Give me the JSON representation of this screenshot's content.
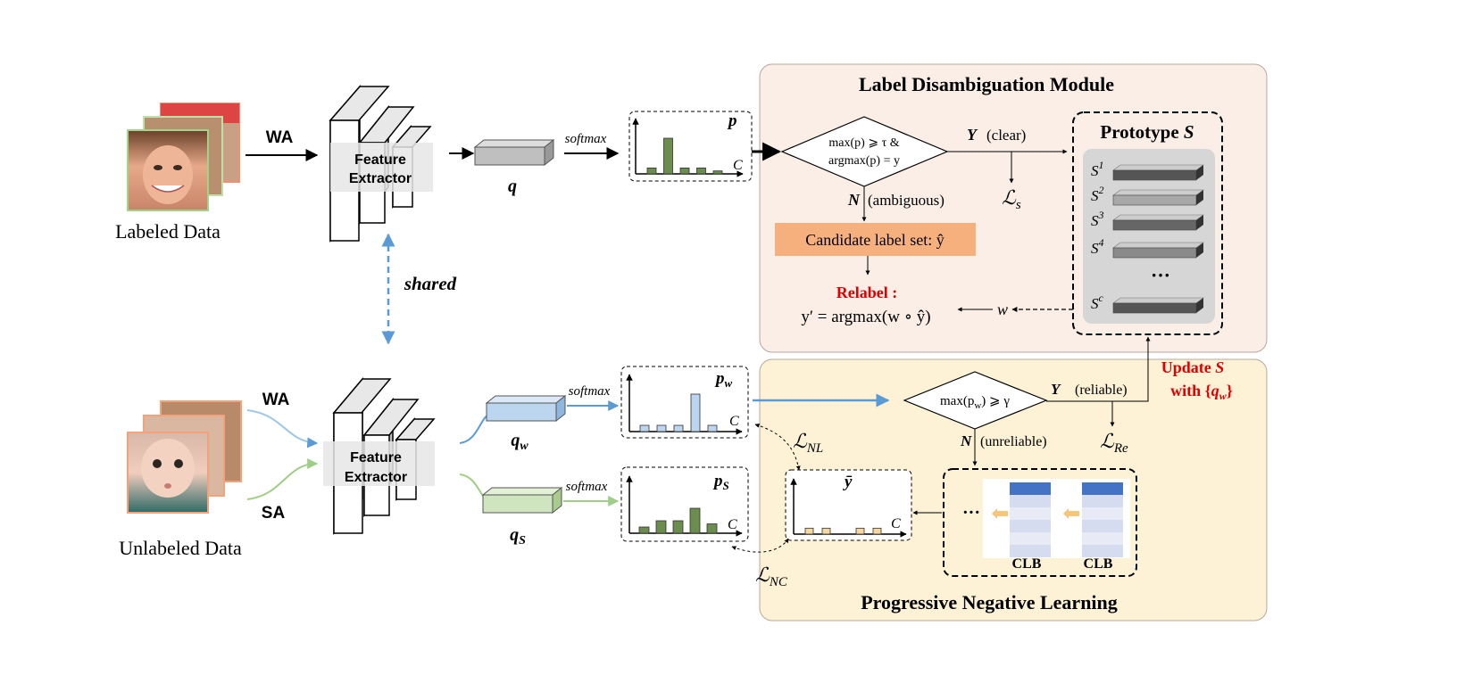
{
  "top": {
    "images_label": "Labeled Data",
    "aug": "WA",
    "extractor": [
      "Feature",
      "Extractor"
    ],
    "feature": "q",
    "softmax": "softmax",
    "dist_label": "p",
    "axis_c": "C"
  },
  "shared": "shared",
  "bottom": {
    "images_label": "Unlabeled Data",
    "aug_weak": "WA",
    "aug_strong": "SA",
    "extractor": [
      "Feature",
      "Extractor"
    ],
    "feat_w": "q",
    "feat_w_sub": "w",
    "feat_s": "q",
    "feat_s_sub": "S",
    "softmax_w": "softmax",
    "softmax_s": "softmax",
    "dist_w": "p",
    "dist_w_sub": "w",
    "dist_s": "p",
    "dist_s_sub": "S",
    "ybar": "ȳ",
    "axis_c": "C"
  },
  "ldm": {
    "title": "Label Disambiguation Module",
    "cond_line1": "max(p) ⩾ τ &",
    "cond_line2": "argmax(p) = y",
    "yes": "Y",
    "yes_text": "(clear)",
    "no": "N",
    "no_text": "(ambiguous)",
    "loss_main": "ℒ",
    "loss_sub": "s",
    "candidate": "Candidate label set: ŷ",
    "relabel_title": "Relabel :",
    "relabel_formula": "y′ = argmax(w ∘ ŷ)",
    "w": "w"
  },
  "prototype": {
    "title": "Prototype ",
    "title_var": "S",
    "items": [
      "S",
      "S",
      "S",
      "S",
      "S"
    ],
    "sups": [
      "1",
      "2",
      "3",
      "4",
      "c"
    ],
    "ellipsis": "···"
  },
  "update": {
    "line1": "Update ",
    "line1_var": "S",
    "line2": "with {",
    "line2_var": "q",
    "line2_sub": "w",
    "line2_end": "}"
  },
  "pnl": {
    "title": "Progressive Negative Learning",
    "cond": "max(p",
    "cond_sub": "w",
    "cond_end": ") ⩾ γ",
    "yes": "Y",
    "yes_text": "(reliable)",
    "no": "N",
    "no_text": "(unreliable)",
    "loss_re": "ℒ",
    "loss_re_sub": "Re",
    "loss_nl": "ℒ",
    "loss_nl_sub": "NL",
    "loss_nc": "ℒ",
    "loss_nc_sub": "NC",
    "clb_ellipsis": "···",
    "clb": [
      "CLB",
      "CLB"
    ]
  },
  "chart_data": [
    {
      "type": "bar",
      "title": "p",
      "xlabel": "C",
      "values": [
        1,
        6,
        1,
        1,
        0.5
      ],
      "color": "#6b8e4e"
    },
    {
      "type": "bar",
      "title": "p_w",
      "xlabel": "C",
      "values": [
        1,
        1,
        1,
        6,
        1
      ],
      "color": "#bcd6f0"
    },
    {
      "type": "bar",
      "title": "p_S",
      "xlabel": "C",
      "values": [
        1,
        2,
        2,
        4,
        1.5
      ],
      "color": "#6b8e4e"
    },
    {
      "type": "bar",
      "title": "ȳ",
      "xlabel": "C",
      "values": [
        1,
        1,
        0,
        1,
        1
      ],
      "color": "#f5d9a0"
    }
  ],
  "colors": {
    "ldm_bg": "#faeee6",
    "pnl_bg": "#fdf1d6",
    "candidate_bg": "#f6b07e",
    "relabel": "#e00000",
    "arrow_blue": "#5b9bd5",
    "arrow_green": "#9fcf86"
  }
}
